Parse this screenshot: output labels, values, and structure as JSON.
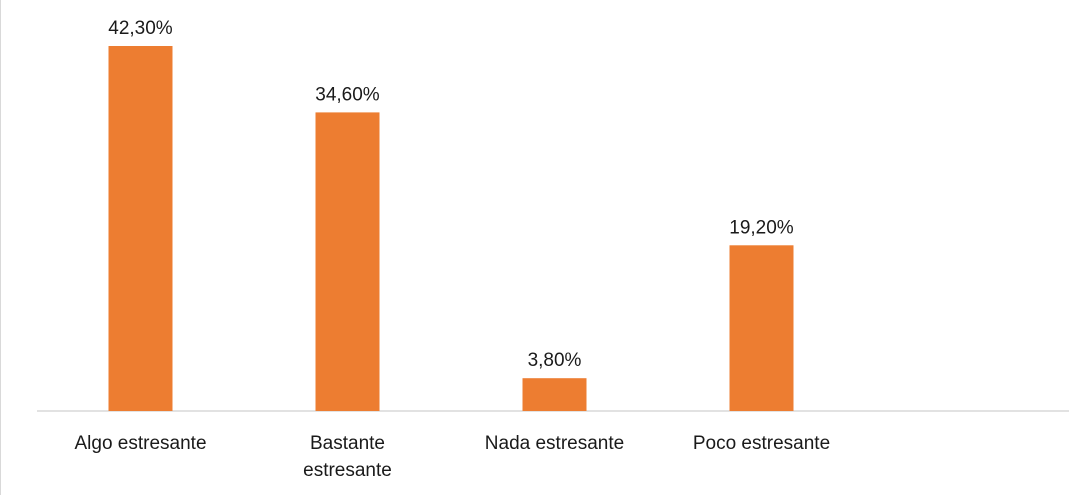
{
  "chart_data": {
    "type": "bar",
    "title": "",
    "xlabel": "",
    "ylabel": "",
    "categories": [
      [
        "Algo estresante"
      ],
      [
        "Bastante",
        "estresante"
      ],
      [
        "Nada estresante"
      ],
      [
        "Poco estresante"
      ]
    ],
    "values": [
      42.3,
      34.6,
      3.8,
      19.2
    ],
    "data_labels": [
      "42,30%",
      "34,60%",
      "3,80%",
      "19,20%"
    ],
    "ylim": [
      0,
      42.3
    ],
    "grid": false,
    "legend": "none",
    "bar_color": "#ed7d31",
    "axis_color": "#d9d9d9",
    "text_color": "#1a1a1a"
  }
}
